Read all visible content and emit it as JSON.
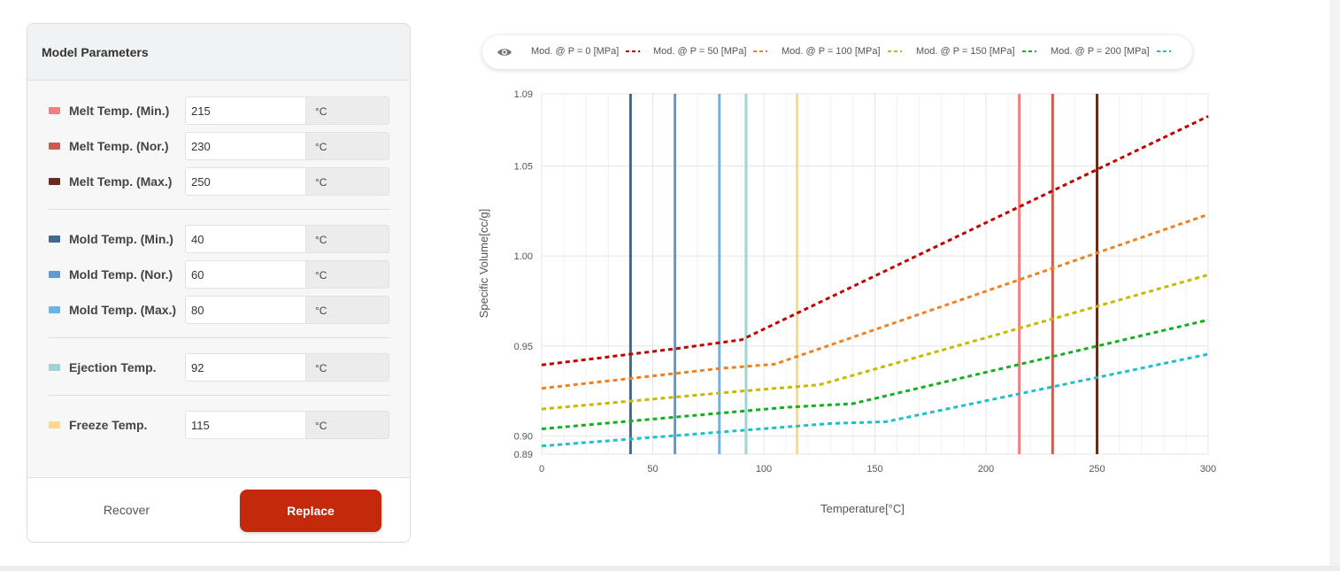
{
  "panel": {
    "title": "Model Parameters",
    "groups": [
      [
        {
          "label": "Melt Temp. (Min.)",
          "value": "215",
          "unit": "°C",
          "color": "#f08080"
        },
        {
          "label": "Melt Temp. (Nor.)",
          "value": "230",
          "unit": "°C",
          "color": "#cd5c50"
        },
        {
          "label": "Melt Temp. (Max.)",
          "value": "250",
          "unit": "°C",
          "color": "#6b2a1e"
        }
      ],
      [
        {
          "label": "Mold Temp. (Min.)",
          "value": "40",
          "unit": "°C",
          "color": "#3f6a90"
        },
        {
          "label": "Mold Temp. (Nor.)",
          "value": "60",
          "unit": "°C",
          "color": "#5f9bd0"
        },
        {
          "label": "Mold Temp. (Max.)",
          "value": "80",
          "unit": "°C",
          "color": "#6ab4ee"
        }
      ],
      [
        {
          "label": "Ejection Temp.",
          "value": "92",
          "unit": "°C",
          "color": "#9ed4d6"
        }
      ],
      [
        {
          "label": "Freeze Temp.",
          "value": "115",
          "unit": "°C",
          "color": "#fbd98a"
        }
      ]
    ],
    "recover_label": "Recover",
    "replace_label": "Replace"
  },
  "legend": {
    "icon": "eye-icon",
    "items": [
      {
        "label": "Mod. @ P = 0 [MPa]",
        "color": "#c00000"
      },
      {
        "label": "Mod. @ P = 50 [MPa]",
        "color": "#f08020"
      },
      {
        "label": "Mod. @ P = 100 [MPa]",
        "color": "#c8b800"
      },
      {
        "label": "Mod. @ P = 150 [MPa]",
        "color": "#10b020"
      },
      {
        "label": "Mod. @ P = 200 [MPa]",
        "color": "#20c0c8"
      }
    ]
  },
  "chart_data": {
    "type": "line",
    "xlabel": "Temperature[°C]",
    "ylabel": "Specific Volume[cc/g]",
    "xlim": [
      0,
      300
    ],
    "ylim": [
      0.89,
      1.09
    ],
    "xticks": [
      0,
      50,
      100,
      150,
      200,
      250,
      300
    ],
    "yticks": [
      0.89,
      0.9,
      0.95,
      1.0,
      1.05,
      1.09
    ],
    "ytick_labels": [
      "0.89",
      "0.90",
      "0.95",
      "1.00",
      "1.05",
      "1.09"
    ],
    "grid": true,
    "legend_position": "top",
    "series": [
      {
        "name": "Mod. @ P = 0 [MPa]",
        "color": "#c00000",
        "x": [
          0,
          60,
          90,
          300
        ],
        "y": [
          0.9395,
          0.9485,
          0.9535,
          1.0775
        ]
      },
      {
        "name": "Mod. @ P = 50 [MPa]",
        "color": "#f08020",
        "x": [
          0,
          80,
          105,
          300
        ],
        "y": [
          0.9265,
          0.9375,
          0.94,
          1.023
        ]
      },
      {
        "name": "Mod. @ P = 100 [MPa]",
        "color": "#c8b800",
        "x": [
          0,
          90,
          125,
          300
        ],
        "y": [
          0.915,
          0.925,
          0.9285,
          0.9895
        ]
      },
      {
        "name": "Mod. @ P = 150 [MPa]",
        "color": "#10b020",
        "x": [
          0,
          110,
          140,
          300
        ],
        "y": [
          0.904,
          0.916,
          0.918,
          0.9645
        ]
      },
      {
        "name": "Mod. @ P = 200 [MPa]",
        "color": "#20c0c8",
        "x": [
          0,
          130,
          155,
          300
        ],
        "y": [
          0.8945,
          0.907,
          0.908,
          0.9455
        ]
      }
    ],
    "vlines": [
      {
        "x": 40,
        "color": "#3f6a90"
      },
      {
        "x": 60,
        "color": "#5f9bd0"
      },
      {
        "x": 80,
        "color": "#6ab4ee"
      },
      {
        "x": 92,
        "color": "#9ed4d6"
      },
      {
        "x": 115,
        "color": "#fbd98a"
      },
      {
        "x": 215,
        "color": "#f08080"
      },
      {
        "x": 230,
        "color": "#cd5c50"
      },
      {
        "x": 250,
        "color": "#6b2a1e"
      }
    ]
  }
}
